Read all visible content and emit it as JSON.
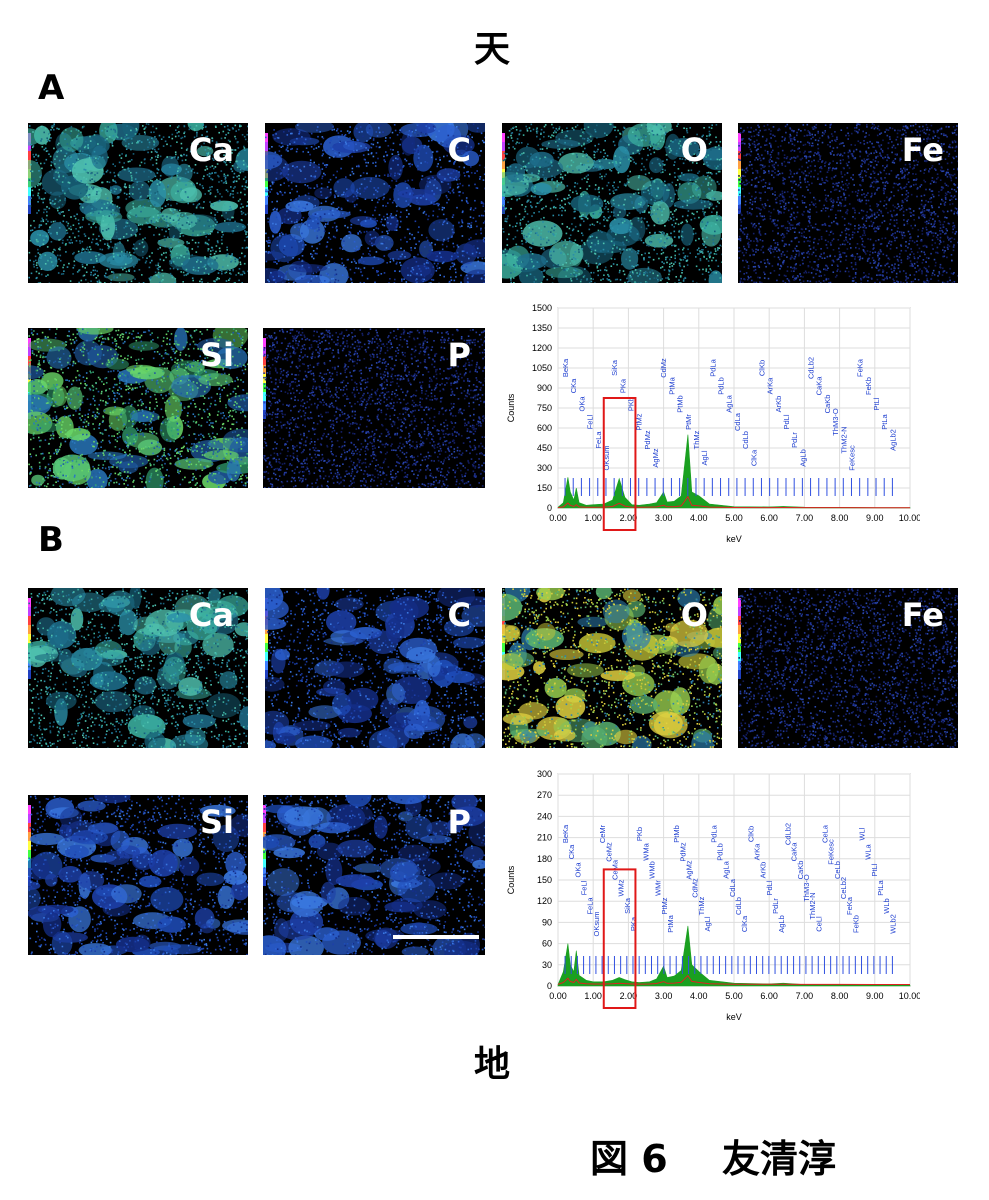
{
  "header": {
    "top": "天",
    "bottom": "地"
  },
  "panels": {
    "A": {
      "letter": "A",
      "maps": [
        {
          "label": "Ca",
          "palette": "teal"
        },
        {
          "label": "C",
          "palette": "blue"
        },
        {
          "label": "O",
          "palette": "teal"
        },
        {
          "label": "Fe",
          "palette": "dark"
        },
        {
          "label": "Si",
          "palette": "green"
        },
        {
          "label": "P",
          "palette": "dark"
        }
      ]
    },
    "B": {
      "letter": "B",
      "maps": [
        {
          "label": "Ca",
          "palette": "teal"
        },
        {
          "label": "C",
          "palette": "blue"
        },
        {
          "label": "O",
          "palette": "yellowgreen"
        },
        {
          "label": "Fe",
          "palette": "dark"
        },
        {
          "label": "Si",
          "palette": "blue"
        },
        {
          "label": "P",
          "palette": "blue"
        }
      ]
    }
  },
  "caption": {
    "figure": "図 6",
    "author": "友清淳"
  },
  "chart_data": [
    {
      "type": "line",
      "xlabel": "keV",
      "ylabel": "Counts",
      "xlim": [
        0,
        10
      ],
      "ylim": [
        0,
        1500
      ],
      "yticks": [
        0,
        150,
        300,
        450,
        600,
        750,
        900,
        1050,
        1200,
        1350,
        1500
      ],
      "xticks": [
        "0.00",
        "1.00",
        "2.00",
        "3.00",
        "4.00",
        "5.00",
        "6.00",
        "7.00",
        "8.00",
        "9.00",
        "10.00"
      ],
      "series": [
        {
          "x": [
            0.0,
            0.15,
            0.28,
            0.35,
            0.45,
            0.52,
            0.6,
            0.8,
            1.0,
            1.3,
            1.55,
            1.74,
            1.9,
            2.1,
            2.3,
            2.6,
            2.8,
            3.0,
            3.1,
            3.3,
            3.5,
            3.69,
            3.8,
            4.01,
            4.3,
            5.0,
            6.0,
            6.4,
            7.0,
            8.0,
            9.0,
            10.0
          ],
          "y": [
            5,
            40,
            230,
            120,
            60,
            150,
            40,
            20,
            25,
            30,
            60,
            220,
            80,
            25,
            20,
            30,
            40,
            120,
            45,
            50,
            90,
            550,
            120,
            90,
            30,
            10,
            8,
            12,
            6,
            5,
            4,
            3
          ]
        }
      ],
      "peak_labels": [
        "BeKa",
        "CKa",
        "OKa",
        "FeLl",
        "FeLa",
        "OKsum",
        "SiKa",
        "PKa",
        "PKb",
        "PtMz",
        "PdMz",
        "AgMz",
        "CdMz",
        "PtMa",
        "PtMb",
        "PtMr",
        "ThMz",
        "AgLl",
        "PdLa",
        "PdLb",
        "AgLa",
        "CdLa",
        "CdLb",
        "ClKa",
        "ClKb",
        "ArKa",
        "ArKb",
        "PdLl",
        "PdLr",
        "AgLb",
        "CdLb2",
        "CaKa",
        "CaKb",
        "ThM3-O",
        "ThM2-N",
        "FeKesc",
        "FeKa",
        "FeKb",
        "PtLl",
        "PtLa",
        "AgLb2"
      ],
      "highlight_box": {
        "from_keV": 1.3,
        "to_keV": 2.2
      }
    },
    {
      "type": "line",
      "xlabel": "keV",
      "ylabel": "Counts",
      "xlim": [
        0,
        10
      ],
      "ylim": [
        0,
        300
      ],
      "yticks": [
        0,
        30,
        60,
        90,
        120,
        150,
        180,
        210,
        240,
        270,
        300
      ],
      "xticks": [
        "0.00",
        "1.00",
        "2.00",
        "3.00",
        "4.00",
        "5.00",
        "6.00",
        "7.00",
        "8.00",
        "9.00",
        "10.00"
      ],
      "series": [
        {
          "x": [
            0.0,
            0.15,
            0.28,
            0.35,
            0.45,
            0.52,
            0.6,
            0.8,
            1.0,
            1.3,
            1.55,
            1.74,
            1.9,
            2.1,
            2.3,
            2.6,
            2.8,
            3.0,
            3.1,
            3.3,
            3.5,
            3.69,
            3.8,
            4.01,
            4.3,
            5.0,
            6.0,
            6.4,
            7.0,
            8.0,
            9.0,
            10.0
          ],
          "y": [
            2,
            20,
            60,
            30,
            20,
            50,
            15,
            8,
            6,
            6,
            8,
            12,
            9,
            6,
            5,
            6,
            10,
            28,
            12,
            14,
            22,
            85,
            30,
            20,
            8,
            4,
            3,
            4,
            2,
            2,
            1,
            1
          ]
        }
      ],
      "peak_labels": [
        "BeKa",
        "CKa",
        "OKa",
        "FeLl",
        "FeLa",
        "OKsum",
        "CeMr",
        "CeMz",
        "CeMa",
        "WMz",
        "SiKa",
        "PKa",
        "PKb",
        "WMa",
        "WMb",
        "WMr",
        "PtMz",
        "PtMa",
        "PtMb",
        "PdMz",
        "AgMz",
        "CdMz",
        "ThMz",
        "AgLl",
        "PdLa",
        "PdLb",
        "AgLa",
        "CdLa",
        "CdLb",
        "ClKa",
        "ClKb",
        "ArKa",
        "ArKb",
        "PdLl",
        "PdLr",
        "AgLb",
        "CdLb2",
        "CaKa",
        "CaKb",
        "ThM3-O",
        "ThM2-N",
        "CeLl",
        "CeLa",
        "FeKesc",
        "CeLb",
        "CeLb2",
        "FeKa",
        "FeKb",
        "WLl",
        "WLa",
        "PtLl",
        "PtLa",
        "WLb",
        "WLb2"
      ],
      "highlight_box": {
        "from_keV": 1.3,
        "to_keV": 2.2
      }
    }
  ]
}
